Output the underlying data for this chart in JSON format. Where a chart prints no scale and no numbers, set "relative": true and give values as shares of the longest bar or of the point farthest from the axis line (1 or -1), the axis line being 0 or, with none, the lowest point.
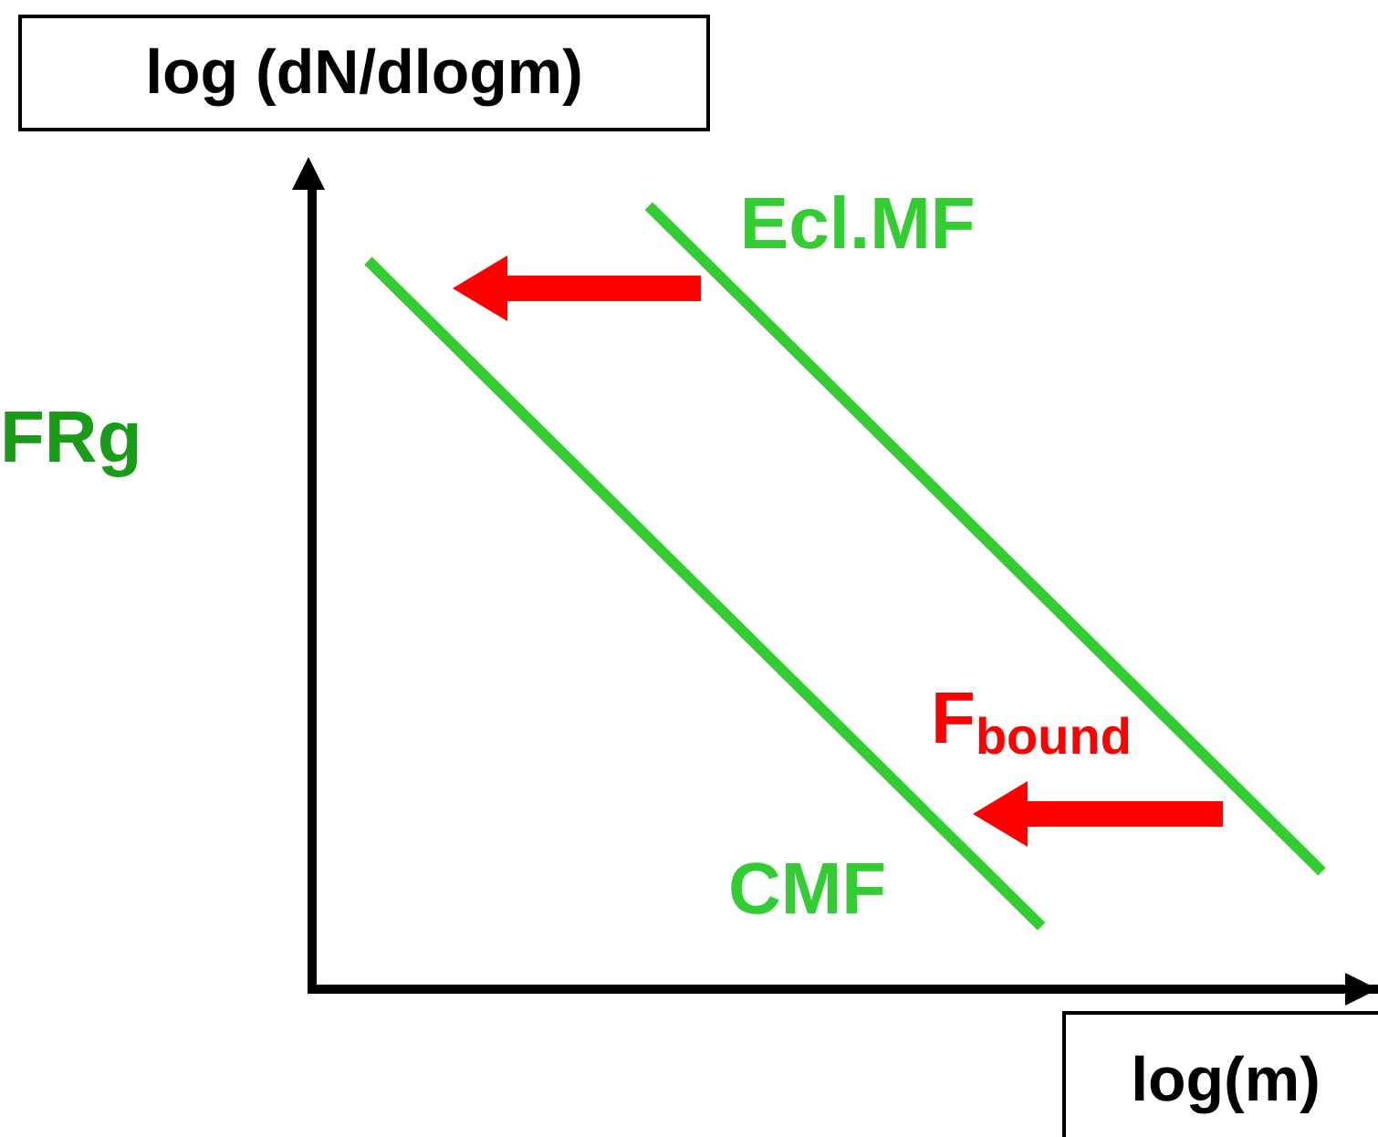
{
  "chart_data": {
    "type": "line",
    "relative": true,
    "ylabel": "log (dN/dlogm)",
    "xlabel": "log(m)",
    "categories": [
      null,
      null,
      null,
      null,
      null,
      null,
      null,
      null,
      null,
      null,
      null,
      null,
      null,
      null,
      null,
      null,
      null,
      null,
      null,
      null
    ],
    "series": [
      {
        "name": "CMF",
        "color": "#33cc33",
        "values": [
          null,
          0.93,
          null,
          null,
          null,
          null,
          null,
          null,
          null,
          null,
          null,
          null,
          null,
          0.08,
          null,
          null,
          null,
          null,
          null,
          null
        ]
      },
      {
        "name": "Ecl.MF",
        "color": "#33cc33",
        "values": [
          null,
          null,
          null,
          null,
          null,
          null,
          1,
          null,
          null,
          null,
          null,
          null,
          null,
          null,
          null,
          null,
          null,
          null,
          0.15,
          null
        ]
      }
    ],
    "annotations": [
      "FRg",
      "F$_{bound}$"
    ],
    "grid": false,
    "tick_labels": false,
    "legend": false,
    "marker": "none",
    "line_style": "solid"
  }
}
